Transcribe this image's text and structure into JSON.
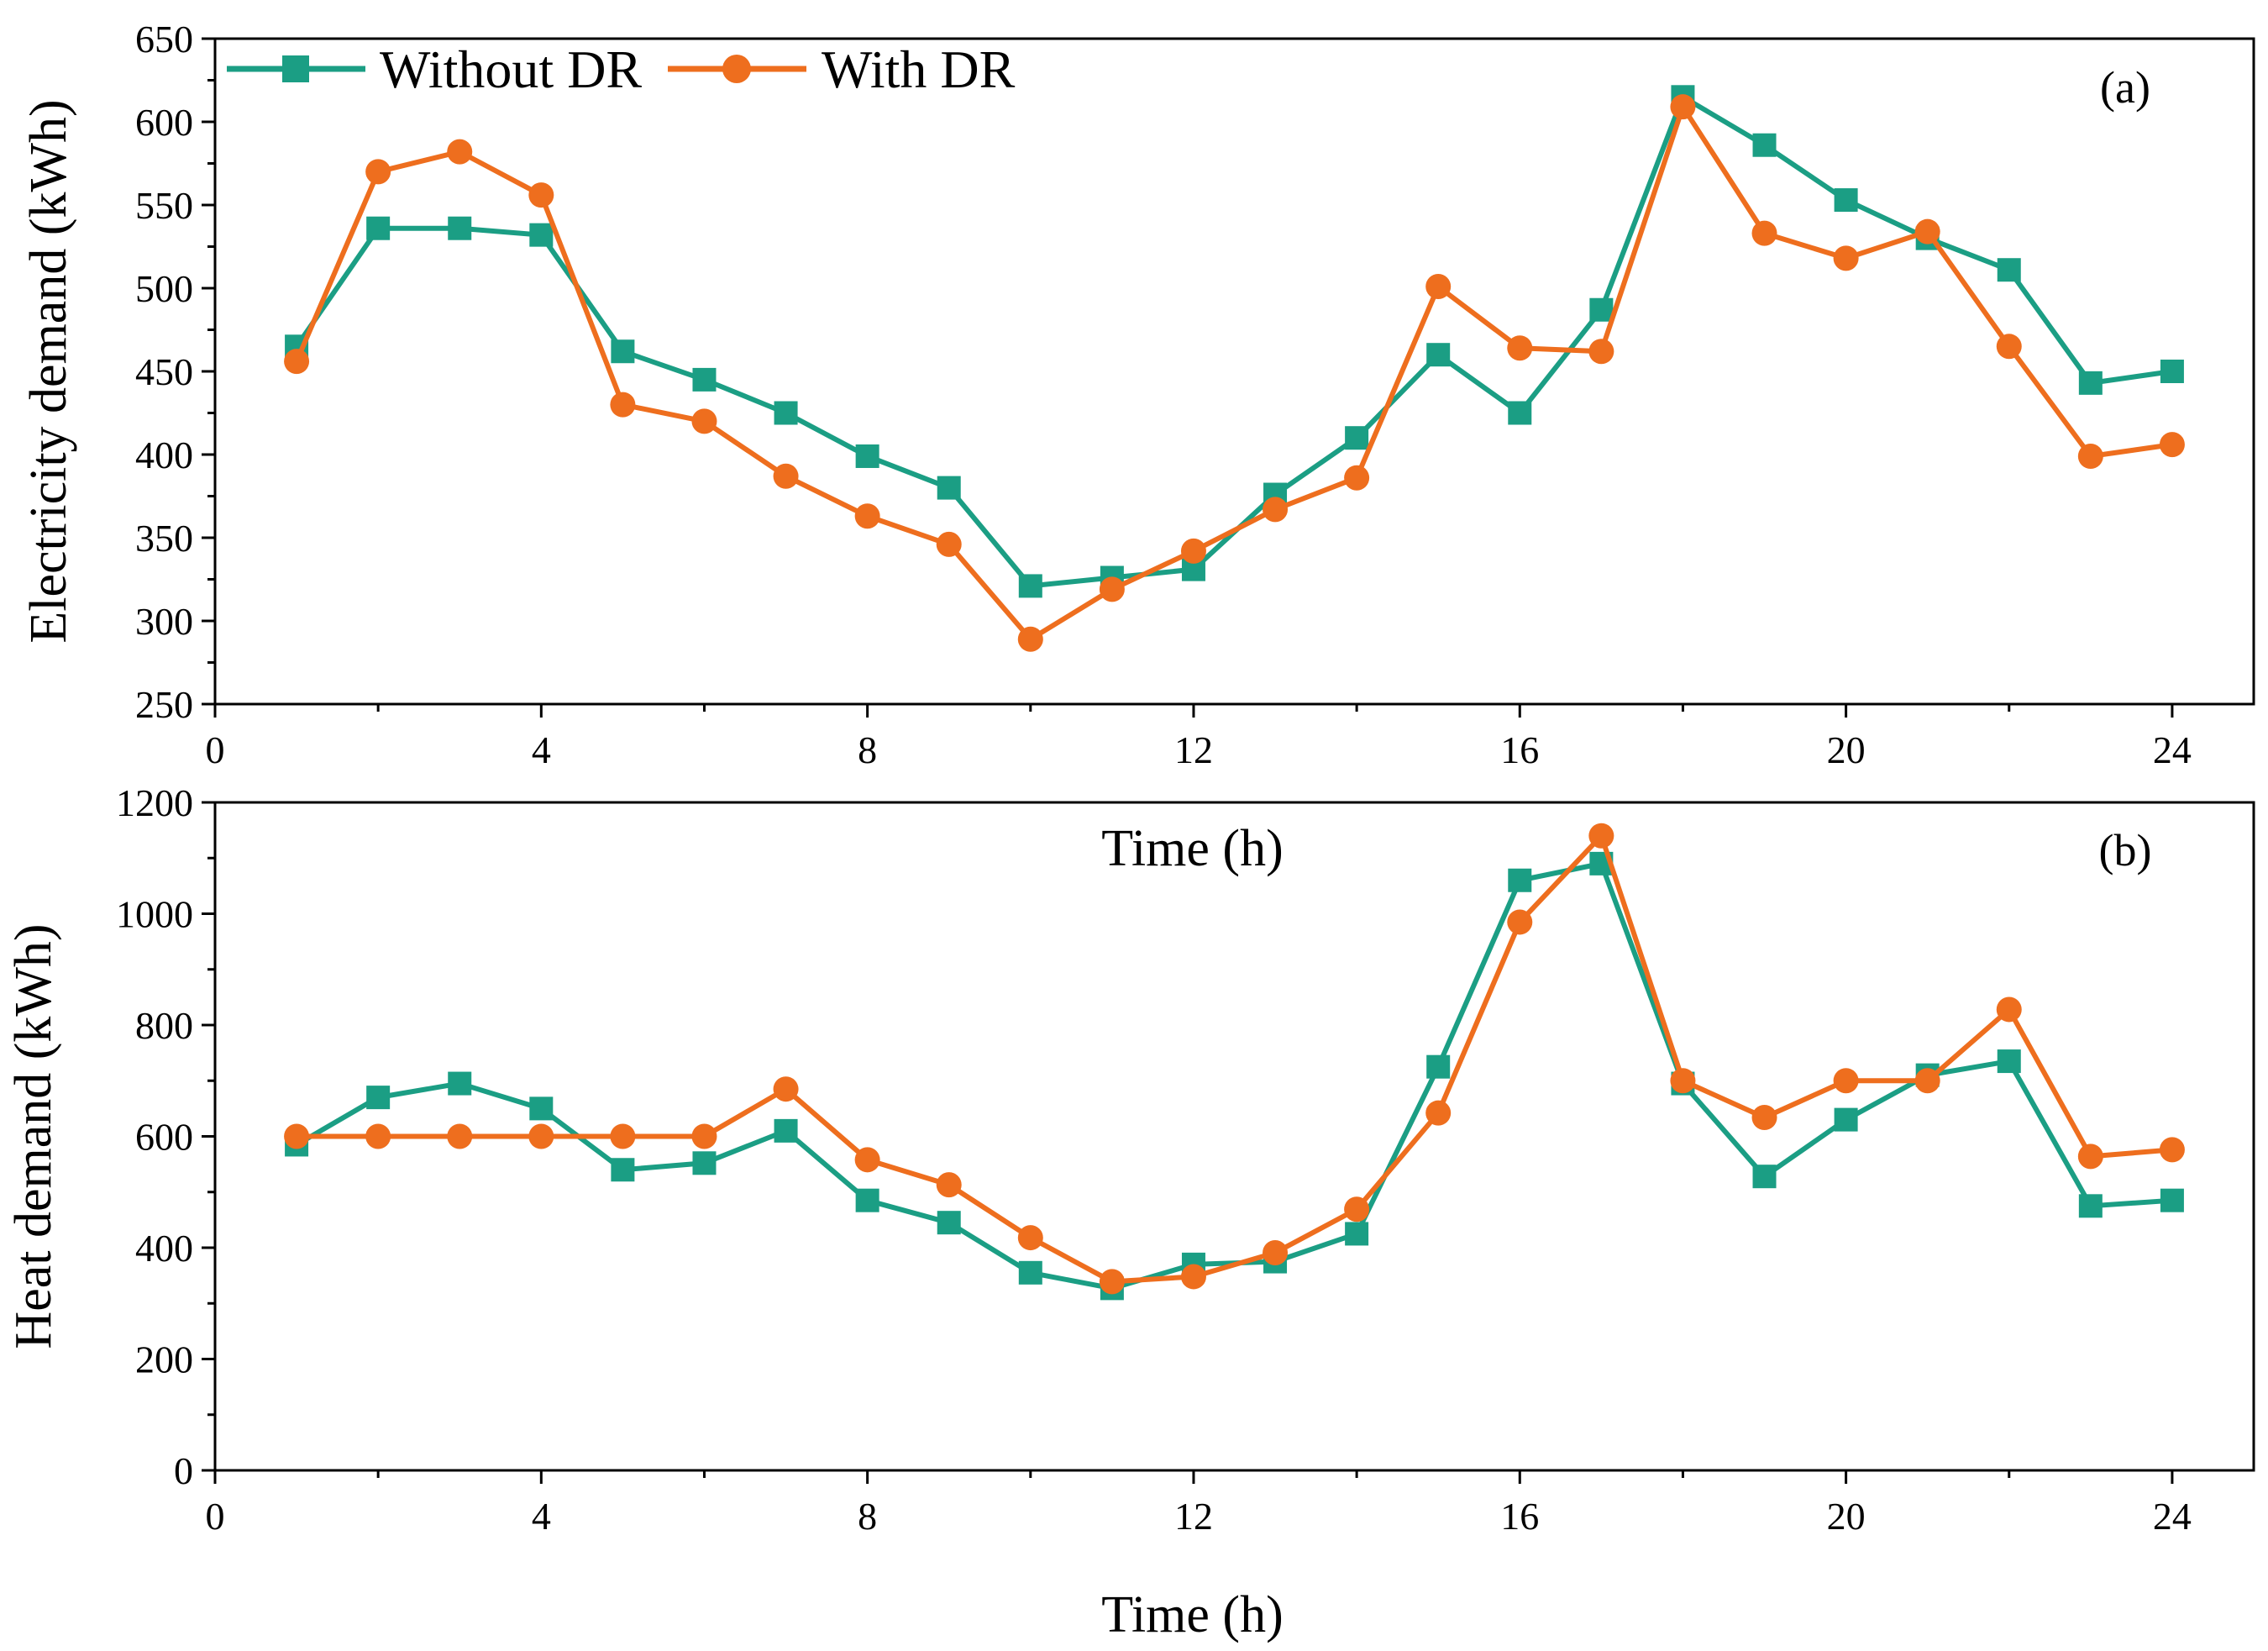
{
  "legend": {
    "series_a_label": "Without DR",
    "series_b_label": "With DR"
  },
  "colors": {
    "without_dr": "#1b9e84",
    "with_dr": "#ee6e1e"
  },
  "chart_data": [
    {
      "type": "line",
      "panel_label": "(a)",
      "title": "",
      "xlabel": "Time (h)",
      "ylabel": "Electricity demand (kWh)",
      "xlim": [
        0,
        25
      ],
      "ylim": [
        250,
        650
      ],
      "xticks": [
        0,
        4,
        8,
        12,
        16,
        20,
        24
      ],
      "yticks": [
        250,
        300,
        350,
        400,
        450,
        500,
        550,
        600,
        650
      ],
      "x": [
        1,
        2,
        3,
        4,
        5,
        6,
        7,
        8,
        9,
        10,
        11,
        12,
        13,
        14,
        15,
        16,
        17,
        18,
        19,
        20,
        21,
        22,
        23,
        24
      ],
      "series": [
        {
          "name": "Without DR",
          "marker": "square",
          "values": [
            465,
            536,
            536,
            532,
            462,
            445,
            425,
            399,
            380,
            321,
            326,
            331,
            376,
            410,
            460,
            425,
            487,
            615,
            586,
            553,
            530,
            511,
            443,
            450
          ]
        },
        {
          "name": "With DR",
          "marker": "circle",
          "values": [
            456,
            570,
            582,
            556,
            430,
            420,
            387,
            363,
            346,
            289,
            319,
            342,
            367,
            386,
            501,
            464,
            462,
            609,
            533,
            518,
            534,
            465,
            399,
            406
          ]
        }
      ]
    },
    {
      "type": "line",
      "panel_label": "(b)",
      "title": "",
      "xlabel": "Time (h)",
      "ylabel": "Heat demand (kWh)",
      "xlim": [
        0,
        25
      ],
      "ylim": [
        0,
        1200
      ],
      "xticks": [
        0,
        4,
        8,
        12,
        16,
        20,
        24
      ],
      "yticks": [
        0,
        200,
        400,
        600,
        800,
        1000,
        1200
      ],
      "x": [
        1,
        2,
        3,
        4,
        5,
        6,
        7,
        8,
        9,
        10,
        11,
        12,
        13,
        14,
        15,
        16,
        17,
        18,
        19,
        20,
        21,
        22,
        23,
        24
      ],
      "series": [
        {
          "name": "Without DR",
          "marker": "square",
          "values": [
            585,
            670,
            695,
            650,
            540,
            552,
            610,
            485,
            445,
            355,
            327,
            370,
            375,
            425,
            725,
            1060,
            1090,
            695,
            528,
            630,
            710,
            735,
            475,
            485
          ]
        },
        {
          "name": "With DR",
          "marker": "circle",
          "values": [
            600,
            600,
            600,
            600,
            600,
            600,
            685,
            558,
            513,
            418,
            339,
            348,
            391,
            469,
            642,
            985,
            1140,
            700,
            634,
            700,
            700,
            828,
            564,
            576
          ]
        }
      ]
    }
  ]
}
